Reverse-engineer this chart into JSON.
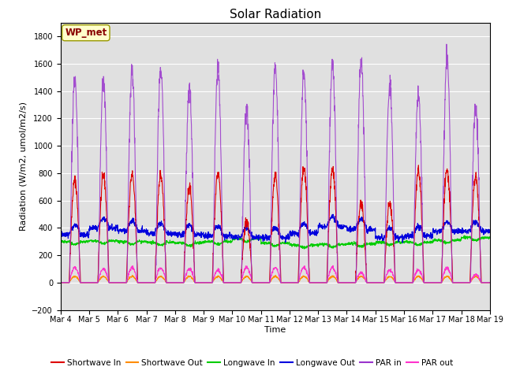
{
  "title": "Solar Radiation",
  "ylabel": "Radiation (W/m2, umol/m2/s)",
  "xlabel": "Time",
  "ylim": [
    -200,
    1900
  ],
  "yticks": [
    -200,
    0,
    200,
    400,
    600,
    800,
    1000,
    1200,
    1400,
    1600,
    1800
  ],
  "x_tick_labels": [
    "Mar 4",
    "Mar 5",
    "Mar 6",
    "Mar 7",
    "Mar 8",
    "Mar 9",
    "Mar 10",
    "Mar 11",
    "Mar 12",
    "Mar 13",
    "Mar 14",
    "Mar 15",
    "Mar 16",
    "Mar 17",
    "Mar 18",
    "Mar 19"
  ],
  "colors": {
    "shortwave_in": "#dd0000",
    "shortwave_out": "#ff8c00",
    "longwave_in": "#00cc00",
    "longwave_out": "#0000dd",
    "par_in": "#9933cc",
    "par_out": "#ff33cc"
  },
  "legend_label": "WP_met",
  "background_color": "#e0e0e0",
  "n_days": 15,
  "samples_per_day": 144
}
